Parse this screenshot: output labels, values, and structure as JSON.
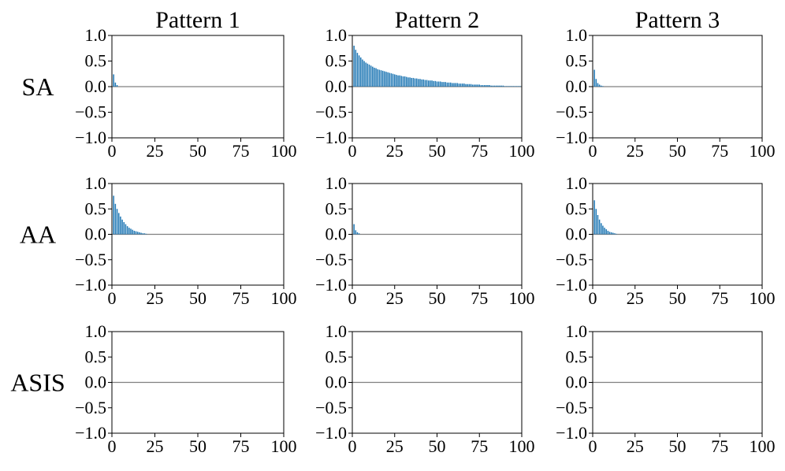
{
  "column_titles": [
    "Pattern 1",
    "Pattern 2",
    "Pattern 3"
  ],
  "row_labels": [
    "SA",
    "AA",
    "ASIS"
  ],
  "chart_data": [
    {
      "type": "bar",
      "color": "#1f77b4",
      "xlim": [
        0,
        100
      ],
      "xticks": [
        0,
        25,
        50,
        75,
        100
      ],
      "ylim": [
        -1,
        1
      ],
      "yticks": [
        {
          "value": -1,
          "label": "−1.0"
        },
        {
          "value": -0.5,
          "label": "−0.5"
        },
        {
          "value": 0,
          "label": "0.0"
        },
        0.5,
        {
          "value": 1,
          "label": "1.0"
        }
      ],
      "x": [
        1,
        2,
        3
      ],
      "values": [
        0.24,
        0.08,
        0.03
      ]
    },
    {
      "type": "bar",
      "color": "#1f77b4",
      "xlim": [
        0,
        100
      ],
      "xticks": [
        0,
        25,
        50,
        75,
        100
      ],
      "ylim": [
        -1,
        1
      ],
      "yticks": [
        {
          "value": -1,
          "label": "−1.0"
        },
        {
          "value": -0.5,
          "label": "−0.5"
        },
        {
          "value": 0,
          "label": "0.0"
        },
        0.5,
        {
          "value": 1,
          "label": "1.0"
        }
      ],
      "x": [
        1,
        2,
        3,
        4,
        5,
        6,
        7,
        8,
        9,
        10,
        11,
        12,
        13,
        14,
        15,
        16,
        17,
        18,
        19,
        20,
        21,
        22,
        23,
        24,
        25,
        26,
        27,
        28,
        29,
        30,
        31,
        32,
        33,
        34,
        35,
        36,
        37,
        38,
        39,
        40,
        41,
        42,
        43,
        44,
        45,
        46,
        47,
        48,
        49,
        50,
        51,
        52,
        53,
        54,
        55,
        56,
        57,
        58,
        59,
        60,
        61,
        62,
        63,
        64,
        65,
        66,
        67,
        68,
        69,
        70,
        71,
        72,
        73,
        74,
        75,
        76,
        77,
        78,
        79,
        80,
        81,
        82,
        83,
        84,
        85,
        86,
        87,
        88,
        89,
        90,
        91,
        92,
        93,
        94,
        95,
        96,
        97,
        98,
        99
      ],
      "values": [
        0.8,
        0.72,
        0.66,
        0.61,
        0.57,
        0.53,
        0.5,
        0.47,
        0.45,
        0.43,
        0.41,
        0.39,
        0.37,
        0.36,
        0.34,
        0.33,
        0.32,
        0.31,
        0.3,
        0.29,
        0.28,
        0.27,
        0.26,
        0.25,
        0.24,
        0.23,
        0.22,
        0.22,
        0.21,
        0.2,
        0.2,
        0.19,
        0.18,
        0.18,
        0.17,
        0.17,
        0.16,
        0.16,
        0.15,
        0.15,
        0.14,
        0.14,
        0.13,
        0.13,
        0.12,
        0.12,
        0.12,
        0.11,
        0.11,
        0.1,
        0.1,
        0.1,
        0.09,
        0.09,
        0.09,
        0.08,
        0.08,
        0.08,
        0.07,
        0.07,
        0.07,
        0.07,
        0.06,
        0.06,
        0.06,
        0.06,
        0.05,
        0.05,
        0.05,
        0.05,
        0.04,
        0.04,
        0.04,
        0.04,
        0.04,
        0.03,
        0.03,
        0.03,
        0.03,
        0.03,
        0.03,
        0.02,
        0.02,
        0.02,
        0.02,
        0.02,
        0.02,
        0.02,
        0.02,
        0.01,
        0.01,
        0.01,
        0.01,
        0.01,
        0.01,
        0.01,
        0.01,
        0.01,
        0.01
      ]
    },
    {
      "type": "bar",
      "color": "#1f77b4",
      "xlim": [
        0,
        100
      ],
      "xticks": [
        0,
        25,
        50,
        75,
        100
      ],
      "ylim": [
        -1,
        1
      ],
      "yticks": [
        {
          "value": -1,
          "label": "−1.0"
        },
        {
          "value": -0.5,
          "label": "−0.5"
        },
        {
          "value": 0,
          "label": "0.0"
        },
        0.5,
        {
          "value": 1,
          "label": "1.0"
        }
      ],
      "x": [
        1,
        2,
        3,
        4,
        5,
        6
      ],
      "values": [
        0.33,
        0.15,
        0.07,
        0.04,
        0.02,
        0.01
      ]
    },
    {
      "type": "bar",
      "color": "#1f77b4",
      "xlim": [
        0,
        100
      ],
      "xticks": [
        0,
        25,
        50,
        75,
        100
      ],
      "ylim": [
        -1,
        1
      ],
      "yticks": [
        {
          "value": -1,
          "label": "−1.0"
        },
        {
          "value": -0.5,
          "label": "−0.5"
        },
        {
          "value": 0,
          "label": "0.0"
        },
        0.5,
        {
          "value": 1,
          "label": "1.0"
        }
      ],
      "x": [
        1,
        2,
        3,
        4,
        5,
        6,
        7,
        8,
        9,
        10,
        11,
        12,
        13,
        14,
        15,
        16,
        17,
        18,
        19,
        20
      ],
      "values": [
        0.76,
        0.6,
        0.5,
        0.42,
        0.35,
        0.29,
        0.24,
        0.2,
        0.16,
        0.13,
        0.11,
        0.09,
        0.07,
        0.06,
        0.05,
        0.04,
        0.03,
        0.02,
        0.02,
        0.01
      ]
    },
    {
      "type": "bar",
      "color": "#1f77b4",
      "xlim": [
        0,
        100
      ],
      "xticks": [
        0,
        25,
        50,
        75,
        100
      ],
      "ylim": [
        -1,
        1
      ],
      "yticks": [
        {
          "value": -1,
          "label": "−1.0"
        },
        {
          "value": -0.5,
          "label": "−0.5"
        },
        {
          "value": 0,
          "label": "0.0"
        },
        0.5,
        {
          "value": 1,
          "label": "1.0"
        }
      ],
      "x": [
        1,
        2,
        3,
        4
      ],
      "values": [
        0.2,
        0.08,
        0.04,
        0.02
      ]
    },
    {
      "type": "bar",
      "color": "#1f77b4",
      "xlim": [
        0,
        100
      ],
      "xticks": [
        0,
        25,
        50,
        75,
        100
      ],
      "ylim": [
        -1,
        1
      ],
      "yticks": [
        {
          "value": -1,
          "label": "−1.0"
        },
        {
          "value": -0.5,
          "label": "−0.5"
        },
        {
          "value": 0,
          "label": "0.0"
        },
        0.5,
        {
          "value": 1,
          "label": "1.0"
        }
      ],
      "x": [
        1,
        2,
        3,
        4,
        5,
        6,
        7,
        8,
        9,
        10,
        11,
        12,
        13,
        14
      ],
      "values": [
        0.67,
        0.5,
        0.38,
        0.29,
        0.22,
        0.17,
        0.13,
        0.1,
        0.07,
        0.05,
        0.04,
        0.03,
        0.02,
        0.01
      ]
    },
    {
      "type": "bar",
      "color": "#1f77b4",
      "xlim": [
        0,
        100
      ],
      "xticks": [
        0,
        25,
        50,
        75,
        100
      ],
      "ylim": [
        -1,
        1
      ],
      "yticks": [
        {
          "value": -1,
          "label": "−1.0"
        },
        {
          "value": -0.5,
          "label": "−0.5"
        },
        {
          "value": 0,
          "label": "0.0"
        },
        0.5,
        {
          "value": 1,
          "label": "1.0"
        }
      ],
      "x": [],
      "values": []
    },
    {
      "type": "bar",
      "color": "#1f77b4",
      "xlim": [
        0,
        100
      ],
      "xticks": [
        0,
        25,
        50,
        75,
        100
      ],
      "ylim": [
        -1,
        1
      ],
      "yticks": [
        {
          "value": -1,
          "label": "−1.0"
        },
        {
          "value": -0.5,
          "label": "−0.5"
        },
        {
          "value": 0,
          "label": "0.0"
        },
        0.5,
        {
          "value": 1,
          "label": "1.0"
        }
      ],
      "x": [],
      "values": []
    },
    {
      "type": "bar",
      "color": "#1f77b4",
      "xlim": [
        0,
        100
      ],
      "xticks": [
        0,
        25,
        50,
        75,
        100
      ],
      "ylim": [
        -1,
        1
      ],
      "yticks": [
        {
          "value": -1,
          "label": "−1.0"
        },
        {
          "value": -0.5,
          "label": "−0.5"
        },
        {
          "value": 0,
          "label": "0.0"
        },
        0.5,
        {
          "value": 1,
          "label": "1.0"
        }
      ],
      "x": [],
      "values": []
    }
  ]
}
